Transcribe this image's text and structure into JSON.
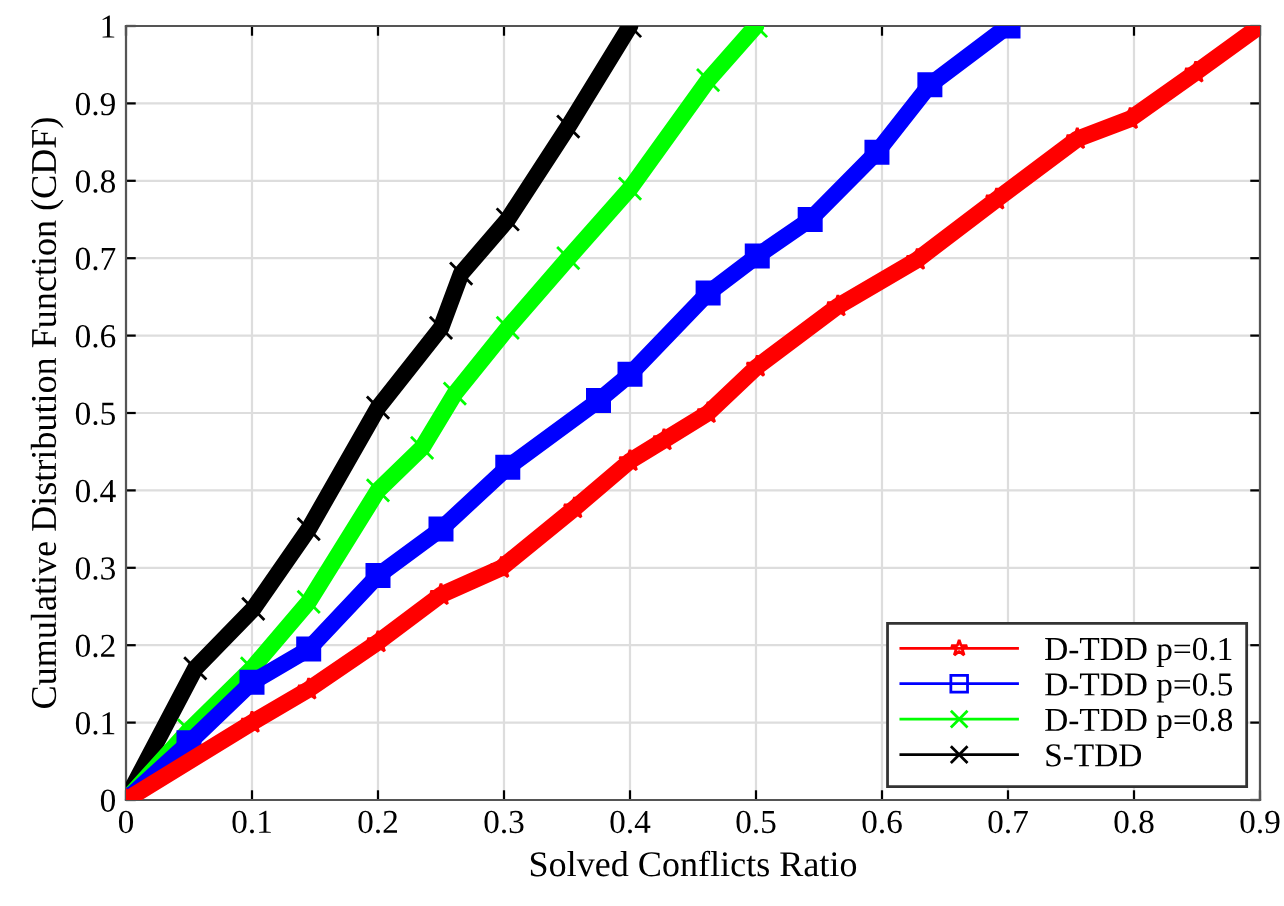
{
  "chart_data": {
    "type": "line",
    "xlabel": "Solved Conflicts Ratio",
    "ylabel": "Cumulative Distribution Function (CDF)",
    "xlim": [
      0,
      0.9
    ],
    "ylim": [
      0,
      1
    ],
    "xticks": [
      0,
      0.1,
      0.2,
      0.3,
      0.4,
      0.5,
      0.6,
      0.7,
      0.8,
      0.9
    ],
    "yticks": [
      0,
      0.1,
      0.2,
      0.3,
      0.4,
      0.5,
      0.6,
      0.7,
      0.8,
      0.9,
      1
    ],
    "grid": true,
    "legend": "bottom right",
    "series": [
      {
        "name": "D-TDD p=0.1",
        "color": "#ff0000",
        "marker": "star",
        "x": [
          0,
          0.1,
          0.145,
          0.2,
          0.25,
          0.298,
          0.356,
          0.4,
          0.427,
          0.462,
          0.501,
          0.565,
          0.628,
          0.691,
          0.755,
          0.797,
          0.849,
          0.9
        ],
        "values": [
          0,
          0.1,
          0.143,
          0.204,
          0.265,
          0.3,
          0.377,
          0.438,
          0.465,
          0.5,
          0.56,
          0.638,
          0.698,
          0.776,
          0.854,
          0.88,
          0.94,
          1
        ]
      },
      {
        "name": "D-TDD p=0.5",
        "color": "#0000ff",
        "marker": "square",
        "x": [
          0,
          0.05,
          0.1,
          0.145,
          0.2,
          0.25,
          0.303,
          0.375,
          0.4,
          0.462,
          0.501,
          0.543,
          0.596,
          0.638,
          0.7
        ],
        "values": [
          0,
          0.074,
          0.152,
          0.195,
          0.29,
          0.35,
          0.43,
          0.516,
          0.55,
          0.655,
          0.703,
          0.75,
          0.837,
          0.924,
          1
        ]
      },
      {
        "name": "D-TDD p=0.8",
        "color": "#00ff00",
        "marker": "cross",
        "x": [
          0,
          0.05,
          0.1,
          0.145,
          0.2,
          0.235,
          0.261,
          0.303,
          0.351,
          0.4,
          0.462,
          0.5
        ],
        "values": [
          0,
          0.09,
          0.17,
          0.256,
          0.4,
          0.455,
          0.525,
          0.61,
          0.7,
          0.79,
          0.93,
          1
        ]
      },
      {
        "name": "S-TDD",
        "color": "#000000",
        "marker": "cross",
        "x": [
          0,
          0.055,
          0.101,
          0.145,
          0.2,
          0.25,
          0.266,
          0.303,
          0.351,
          0.4
        ],
        "values": [
          0,
          0.17,
          0.247,
          0.35,
          0.507,
          0.61,
          0.68,
          0.75,
          0.87,
          1
        ]
      }
    ]
  }
}
